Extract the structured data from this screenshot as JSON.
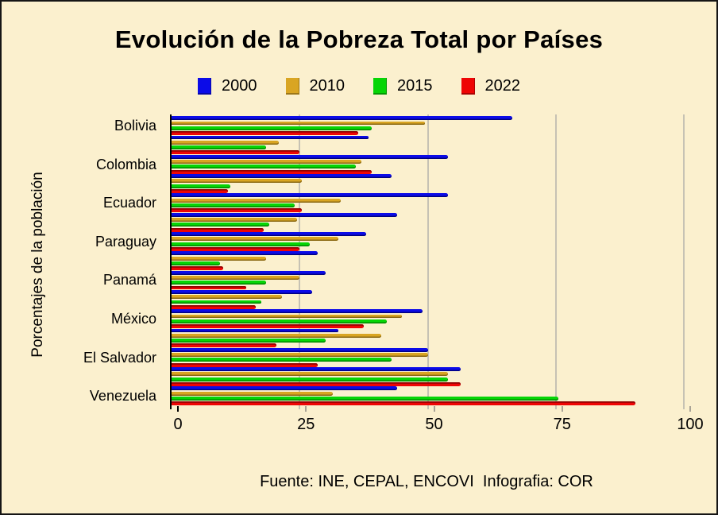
{
  "title": "Evolución de la Pobreza Total por Países",
  "y_axis_title": "Porcentajes de la población",
  "footer": "Fuente: INE, CEPAL, ENCOVI  Infografia: COR",
  "colors": {
    "background": "#FBF0CE",
    "grid": "#C6C2B4",
    "axis": "#000000",
    "tick_zero": "#000000",
    "tick_other": "#A9A396"
  },
  "chart_data": {
    "type": "bar",
    "orientation": "horizontal",
    "title": "Evolución de la Pobreza Total por Países",
    "xlabel": "",
    "ylabel": "Porcentajes de la población",
    "xlim": [
      0,
      100
    ],
    "x_ticks": [
      0,
      25,
      50,
      75,
      100
    ],
    "grid": true,
    "legend_position": "top",
    "categories": [
      "Bolivia",
      "",
      "Colombia",
      "",
      "Ecuador",
      "",
      "Paraguay",
      "",
      "Panamá",
      "",
      "México",
      "",
      "El Salvador",
      "",
      "Venezuela"
    ],
    "series": [
      {
        "name": "2000",
        "color": "#0B0BE8",
        "dark": "#000080",
        "edge": "bottom",
        "values": [
          66.5,
          38.5,
          54,
          43,
          54,
          44,
          38,
          28.5,
          30,
          27.5,
          49,
          32.5,
          50,
          56.5,
          44
        ]
      },
      {
        "name": "2010",
        "color": "#D9A522",
        "dark": "#8B6914",
        "edge": "bottom",
        "values": [
          49.5,
          21,
          37,
          25.5,
          33,
          24.5,
          32.5,
          18.5,
          25,
          21.5,
          45,
          41,
          50,
          54,
          31.5
        ]
      },
      {
        "name": "2015",
        "color": "#06D506",
        "dark": "#008800",
        "edge": "bottom",
        "values": [
          39,
          18.5,
          36,
          11.5,
          24,
          19,
          27,
          9.5,
          18.5,
          17.5,
          42,
          30,
          43,
          54,
          75.5
        ]
      },
      {
        "name": "2022",
        "color": "#EE0505",
        "dark": "#8F0000",
        "edge": "top",
        "values": [
          36.5,
          25,
          39,
          11,
          25.5,
          18,
          25,
          10,
          14.5,
          16.5,
          37.5,
          20.5,
          28.5,
          56.5,
          90.5
        ]
      }
    ]
  }
}
